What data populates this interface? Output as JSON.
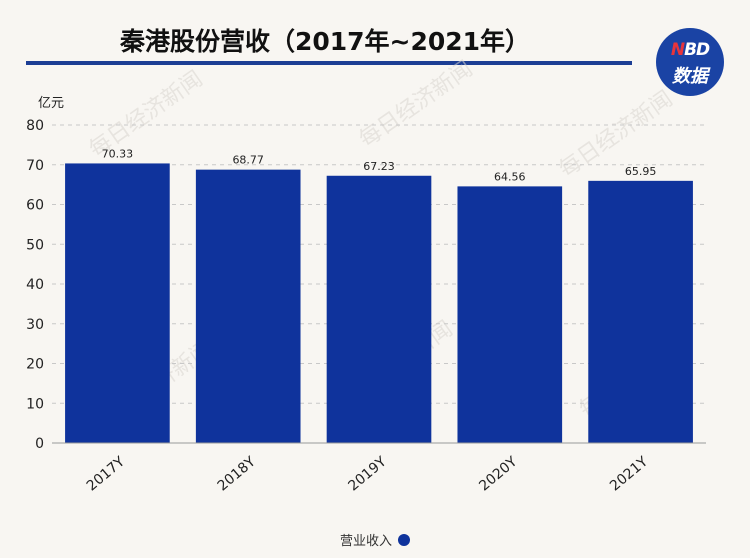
{
  "title": "秦港股份营收（2017年~2021年）",
  "logo": {
    "line1_a": "N",
    "line1_b": "BD",
    "line2": "数据"
  },
  "watermark": "每日经济新闻",
  "colors": {
    "bar": "#0f339c",
    "accent": "#1c3e94",
    "logo_red": "#e8343b"
  },
  "chart_data": {
    "type": "bar",
    "categories": [
      "2017Y",
      "2018Y",
      "2019Y",
      "2020Y",
      "2021Y"
    ],
    "series": [
      {
        "name": "营业收入",
        "values": [
          70.33,
          68.77,
          67.23,
          64.56,
          65.95
        ]
      }
    ],
    "value_labels": [
      "70.33",
      "68.77",
      "67.23",
      "64.56",
      "65.95"
    ],
    "ylabel": "亿元",
    "ylim": [
      0,
      80
    ],
    "yticks": [
      0,
      10,
      20,
      30,
      40,
      50,
      60,
      70,
      80
    ],
    "grid": true,
    "legend_position": "bottom"
  }
}
